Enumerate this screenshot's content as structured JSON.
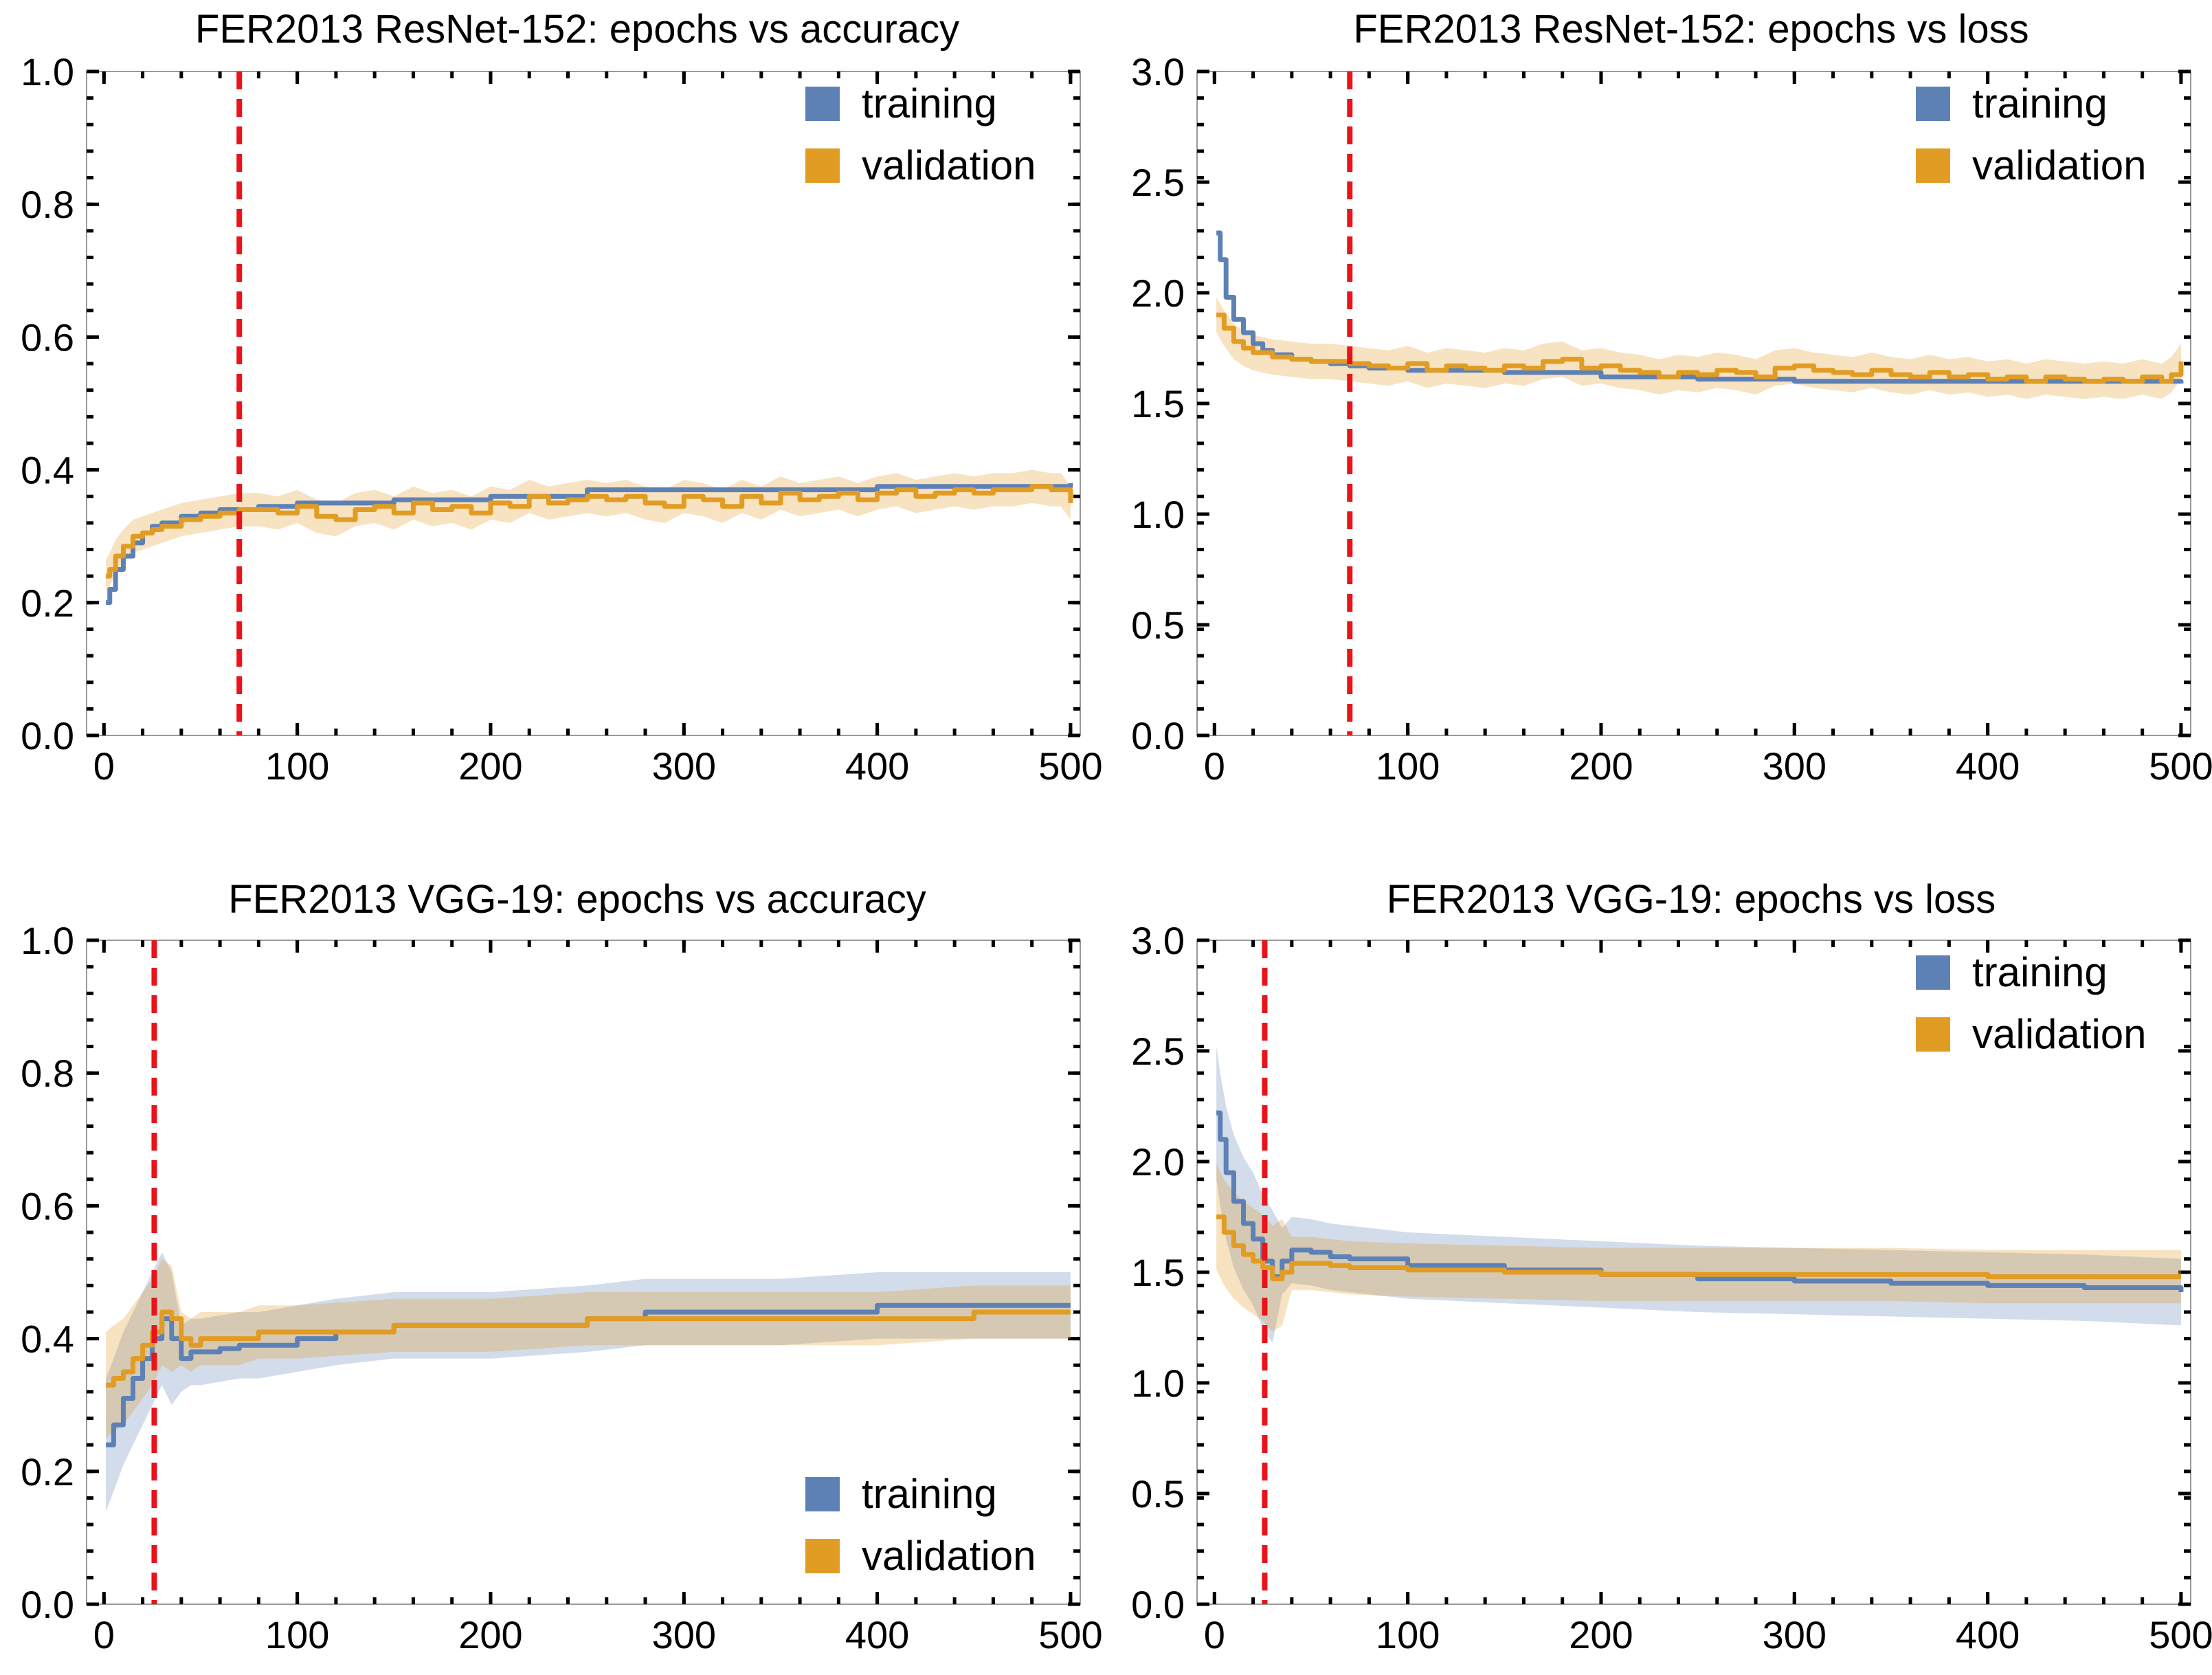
{
  "colors": {
    "training": "#5e81b5",
    "validation": "#e19c24",
    "cutoff": "#e8141a",
    "frame": "#9a9a9a"
  },
  "chart_data": [
    {
      "id": "resnet-acc",
      "type": "line",
      "title": "FER2013 ResNet-152: epochs vs accuracy",
      "xlabel": "",
      "ylabel": "",
      "xlim": [
        -9,
        505
      ],
      "ylim": [
        0,
        1.0
      ],
      "xticks": [
        "0",
        "100",
        "200",
        "300",
        "400",
        "500"
      ],
      "yticks": [
        "0.0",
        "0.2",
        "0.4",
        "0.6",
        "0.8",
        "1.0"
      ],
      "cutoff_epoch": 70,
      "legend": {
        "position": "top-right",
        "entries": [
          "training",
          "validation"
        ]
      },
      "series": [
        {
          "name": "training",
          "band": 0.0,
          "x": [
            1,
            3,
            6,
            10,
            15,
            20,
            25,
            30,
            40,
            50,
            60,
            70,
            80,
            100,
            150,
            200,
            250,
            300,
            350,
            400,
            450,
            500
          ],
          "values": [
            0.2,
            0.22,
            0.25,
            0.27,
            0.29,
            0.305,
            0.315,
            0.32,
            0.33,
            0.335,
            0.34,
            0.34,
            0.345,
            0.35,
            0.355,
            0.36,
            0.37,
            0.37,
            0.37,
            0.375,
            0.375,
            0.38
          ]
        },
        {
          "name": "validation",
          "band": 0.025,
          "x": [
            1,
            3,
            6,
            10,
            15,
            20,
            25,
            30,
            40,
            50,
            60,
            70,
            80,
            90,
            100,
            110,
            120,
            130,
            140,
            150,
            160,
            170,
            180,
            190,
            200,
            210,
            220,
            230,
            240,
            250,
            260,
            270,
            280,
            290,
            300,
            310,
            320,
            330,
            340,
            350,
            360,
            370,
            380,
            390,
            400,
            410,
            420,
            430,
            440,
            450,
            460,
            470,
            480,
            490,
            495,
            500
          ],
          "values": [
            0.24,
            0.25,
            0.27,
            0.285,
            0.3,
            0.305,
            0.31,
            0.315,
            0.325,
            0.33,
            0.335,
            0.34,
            0.34,
            0.335,
            0.345,
            0.33,
            0.325,
            0.34,
            0.345,
            0.335,
            0.35,
            0.34,
            0.345,
            0.335,
            0.35,
            0.345,
            0.36,
            0.35,
            0.355,
            0.36,
            0.355,
            0.36,
            0.35,
            0.345,
            0.36,
            0.355,
            0.345,
            0.36,
            0.35,
            0.365,
            0.355,
            0.36,
            0.365,
            0.355,
            0.365,
            0.37,
            0.36,
            0.365,
            0.37,
            0.365,
            0.37,
            0.37,
            0.375,
            0.37,
            0.37,
            0.35
          ]
        }
      ]
    },
    {
      "id": "resnet-loss",
      "type": "line",
      "title": "FER2013 ResNet-152: epochs vs loss",
      "xlabel": "",
      "ylabel": "",
      "xlim": [
        -9,
        505
      ],
      "ylim": [
        0,
        3.0
      ],
      "xticks": [
        "0",
        "100",
        "200",
        "300",
        "400",
        "500"
      ],
      "yticks": [
        "0.0",
        "0.5",
        "1.0",
        "1.5",
        "2.0",
        "2.5",
        "3.0"
      ],
      "cutoff_epoch": 70,
      "legend": {
        "position": "top-right",
        "entries": [
          "training",
          "validation"
        ]
      },
      "series": [
        {
          "name": "training",
          "band": 0.0,
          "x": [
            1,
            3,
            6,
            10,
            15,
            20,
            25,
            30,
            40,
            50,
            60,
            70,
            80,
            100,
            150,
            200,
            250,
            300,
            350,
            400,
            450,
            500
          ],
          "values": [
            2.27,
            2.15,
            1.98,
            1.88,
            1.82,
            1.77,
            1.74,
            1.72,
            1.7,
            1.69,
            1.68,
            1.67,
            1.66,
            1.65,
            1.64,
            1.62,
            1.61,
            1.6,
            1.6,
            1.6,
            1.6,
            1.59
          ]
        },
        {
          "name": "validation",
          "band": 0.08,
          "x": [
            1,
            5,
            10,
            15,
            20,
            30,
            40,
            50,
            60,
            70,
            80,
            90,
            100,
            110,
            120,
            130,
            140,
            150,
            160,
            170,
            180,
            190,
            200,
            210,
            220,
            230,
            240,
            250,
            260,
            270,
            280,
            290,
            300,
            310,
            320,
            330,
            340,
            350,
            360,
            370,
            380,
            390,
            400,
            410,
            420,
            430,
            440,
            450,
            460,
            470,
            480,
            490,
            495,
            500
          ],
          "values": [
            1.9,
            1.84,
            1.78,
            1.75,
            1.73,
            1.71,
            1.7,
            1.69,
            1.69,
            1.68,
            1.67,
            1.66,
            1.68,
            1.65,
            1.67,
            1.66,
            1.65,
            1.67,
            1.66,
            1.69,
            1.7,
            1.66,
            1.67,
            1.65,
            1.64,
            1.62,
            1.64,
            1.63,
            1.65,
            1.64,
            1.62,
            1.66,
            1.67,
            1.65,
            1.64,
            1.63,
            1.65,
            1.63,
            1.62,
            1.64,
            1.62,
            1.63,
            1.61,
            1.62,
            1.6,
            1.62,
            1.61,
            1.6,
            1.61,
            1.6,
            1.62,
            1.6,
            1.63,
            1.69
          ]
        }
      ]
    },
    {
      "id": "vgg-acc",
      "type": "line",
      "title": "FER2013 VGG-19: epochs vs accuracy",
      "xlabel": "",
      "ylabel": "",
      "xlim": [
        -9,
        505
      ],
      "ylim": [
        0,
        1.0
      ],
      "xticks": [
        "0",
        "100",
        "200",
        "300",
        "400",
        "500"
      ],
      "yticks": [
        "0.0",
        "0.2",
        "0.4",
        "0.6",
        "0.8",
        "1.0"
      ],
      "cutoff_epoch": 26,
      "legend": {
        "position": "bottom-right",
        "entries": [
          "training",
          "validation"
        ]
      },
      "series": [
        {
          "name": "training",
          "band": 0.05,
          "x": [
            1,
            5,
            10,
            15,
            20,
            25,
            30,
            35,
            40,
            45,
            50,
            60,
            70,
            80,
            100,
            120,
            150,
            200,
            250,
            280,
            300,
            350,
            400,
            450,
            500
          ],
          "values": [
            0.24,
            0.27,
            0.31,
            0.34,
            0.37,
            0.4,
            0.43,
            0.4,
            0.37,
            0.38,
            0.38,
            0.385,
            0.39,
            0.39,
            0.4,
            0.41,
            0.42,
            0.42,
            0.43,
            0.44,
            0.44,
            0.44,
            0.45,
            0.45,
            0.45
          ]
        },
        {
          "name": "validation",
          "band": 0.04,
          "x": [
            1,
            5,
            10,
            15,
            20,
            25,
            30,
            35,
            40,
            45,
            50,
            60,
            70,
            80,
            100,
            150,
            200,
            250,
            300,
            350,
            400,
            450,
            500
          ],
          "values": [
            0.33,
            0.34,
            0.35,
            0.37,
            0.39,
            0.41,
            0.44,
            0.43,
            0.4,
            0.39,
            0.4,
            0.4,
            0.4,
            0.41,
            0.41,
            0.42,
            0.42,
            0.43,
            0.43,
            0.43,
            0.43,
            0.44,
            0.44
          ]
        }
      ]
    },
    {
      "id": "vgg-loss",
      "type": "line",
      "title": "FER2013 VGG-19: epochs vs loss",
      "xlabel": "",
      "ylabel": "",
      "xlim": [
        -9,
        505
      ],
      "ylim": [
        0,
        3.0
      ],
      "xticks": [
        "0",
        "100",
        "200",
        "300",
        "400",
        "500"
      ],
      "yticks": [
        "0.0",
        "0.5",
        "1.0",
        "1.5",
        "2.0",
        "2.5",
        "3.0"
      ],
      "cutoff_epoch": 26,
      "legend": {
        "position": "top-right",
        "entries": [
          "training",
          "validation"
        ]
      },
      "series": [
        {
          "name": "training",
          "band": 0.15,
          "x": [
            1,
            3,
            6,
            10,
            15,
            20,
            25,
            30,
            35,
            40,
            50,
            60,
            70,
            100,
            150,
            200,
            250,
            300,
            350,
            400,
            450,
            500
          ],
          "values": [
            2.22,
            2.1,
            1.95,
            1.82,
            1.72,
            1.65,
            1.55,
            1.48,
            1.55,
            1.6,
            1.59,
            1.57,
            1.56,
            1.53,
            1.51,
            1.49,
            1.47,
            1.46,
            1.45,
            1.44,
            1.43,
            1.41
          ]
        },
        {
          "name": "validation",
          "band": 0.12,
          "x": [
            1,
            5,
            10,
            15,
            20,
            25,
            30,
            35,
            40,
            50,
            60,
            70,
            100,
            150,
            200,
            250,
            300,
            350,
            400,
            450,
            500
          ],
          "values": [
            1.75,
            1.68,
            1.62,
            1.58,
            1.55,
            1.52,
            1.47,
            1.5,
            1.54,
            1.54,
            1.53,
            1.52,
            1.51,
            1.5,
            1.49,
            1.49,
            1.49,
            1.49,
            1.48,
            1.48,
            1.48
          ]
        }
      ]
    }
  ]
}
